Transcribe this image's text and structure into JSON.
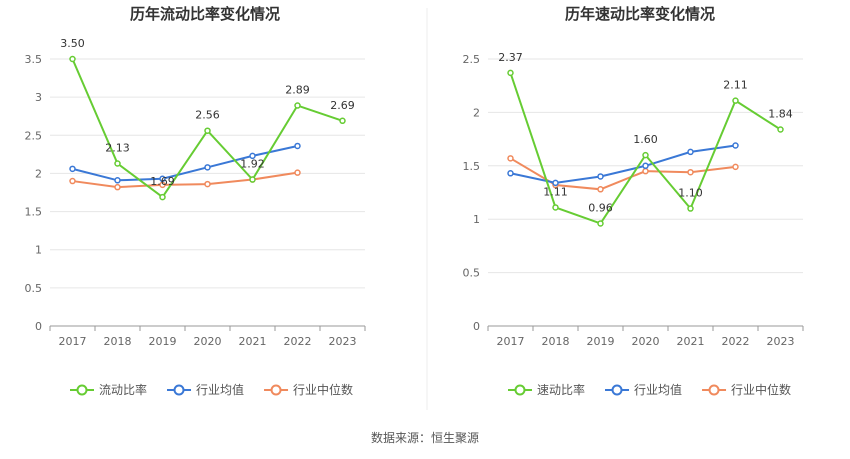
{
  "source": "数据来源：恒生聚源",
  "colors": {
    "primary": "#66cc33",
    "average": "#3a78d6",
    "median": "#f08a5d",
    "grid": "#e6e6e6",
    "axis": "#999999"
  },
  "chart_data": [
    {
      "type": "line",
      "title": "历年流动比率变化情况",
      "categories": [
        "2017",
        "2018",
        "2019",
        "2020",
        "2021",
        "2022",
        "2023"
      ],
      "ylim": [
        0,
        3.5
      ],
      "yticks": [
        "0",
        "0.5",
        "1",
        "1.5",
        "2",
        "2.5",
        "3",
        "3.5"
      ],
      "legend_position": "bottom",
      "grid": true,
      "series": [
        {
          "name": "流动比率",
          "role": "primary",
          "values": [
            3.5,
            2.13,
            1.69,
            2.56,
            1.92,
            2.89,
            2.69
          ],
          "labels": [
            "3.50",
            "2.13",
            "1.69",
            "2.56",
            "1.92",
            "2.89",
            "2.69"
          ]
        },
        {
          "name": "行业均值",
          "role": "average",
          "values": [
            2.06,
            1.91,
            1.93,
            2.08,
            2.23,
            2.36,
            null
          ]
        },
        {
          "name": "行业中位数",
          "role": "median",
          "values": [
            1.9,
            1.82,
            1.85,
            1.86,
            1.92,
            2.01,
            null
          ]
        }
      ]
    },
    {
      "type": "line",
      "title": "历年速动比率变化情况",
      "categories": [
        "2017",
        "2018",
        "2019",
        "2020",
        "2021",
        "2022",
        "2023"
      ],
      "ylim": [
        0,
        2.5
      ],
      "yticks": [
        "0",
        "0.5",
        "1",
        "1.5",
        "2",
        "2.5"
      ],
      "legend_position": "bottom",
      "grid": true,
      "series": [
        {
          "name": "速动比率",
          "role": "primary",
          "values": [
            2.37,
            1.11,
            0.96,
            1.6,
            1.1,
            2.11,
            1.84
          ],
          "labels": [
            "2.37",
            "1.11",
            "0.96",
            "1.60",
            "1.10",
            "2.11",
            "1.84"
          ]
        },
        {
          "name": "行业均值",
          "role": "average",
          "values": [
            1.43,
            1.34,
            1.4,
            1.5,
            1.63,
            1.69,
            null
          ]
        },
        {
          "name": "行业中位数",
          "role": "median",
          "values": [
            1.57,
            1.32,
            1.28,
            1.45,
            1.44,
            1.49,
            null
          ]
        }
      ]
    }
  ]
}
